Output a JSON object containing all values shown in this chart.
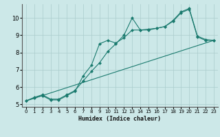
{
  "xlabel": "Humidex (Indice chaleur)",
  "bg_color": "#cce8e8",
  "grid_color": "#aacccc",
  "line_color": "#1a7a6e",
  "xlim": [
    -0.5,
    23.5
  ],
  "ylim": [
    4.85,
    10.8
  ],
  "yticks": [
    5,
    6,
    7,
    8,
    9,
    10
  ],
  "xticks": [
    0,
    1,
    2,
    3,
    4,
    5,
    6,
    7,
    8,
    9,
    10,
    11,
    12,
    13,
    14,
    15,
    16,
    17,
    18,
    19,
    20,
    21,
    22,
    23
  ],
  "line1_x": [
    0,
    1,
    2,
    3,
    4,
    5,
    6,
    7,
    8,
    9,
    10,
    11,
    12,
    13,
    14,
    15,
    16,
    17,
    18,
    19,
    20,
    21,
    22,
    23
  ],
  "line1_y": [
    5.2,
    5.4,
    5.55,
    5.3,
    5.3,
    5.55,
    5.8,
    6.35,
    6.9,
    7.4,
    8.05,
    8.5,
    9.0,
    10.0,
    9.3,
    9.3,
    9.4,
    9.5,
    9.8,
    10.3,
    10.5,
    8.9,
    8.7,
    8.7
  ],
  "line2_x": [
    0,
    1,
    2,
    3,
    4,
    5,
    6,
    7,
    8,
    9,
    10,
    11,
    12,
    13,
    14,
    15,
    16,
    17,
    18,
    19,
    20,
    21,
    22,
    23
  ],
  "line2_y": [
    5.2,
    5.35,
    5.5,
    5.25,
    5.25,
    5.5,
    5.75,
    6.65,
    7.25,
    8.5,
    8.7,
    8.55,
    8.85,
    9.3,
    9.3,
    9.35,
    9.4,
    9.5,
    9.85,
    10.35,
    10.55,
    8.95,
    8.75,
    8.7
  ],
  "line3_x": [
    0,
    23
  ],
  "line3_y": [
    5.2,
    8.7
  ],
  "marker_size": 2.5,
  "linewidth": 0.8,
  "tick_fontsize": 5,
  "xlabel_fontsize": 6,
  "ytick_fontsize": 6
}
